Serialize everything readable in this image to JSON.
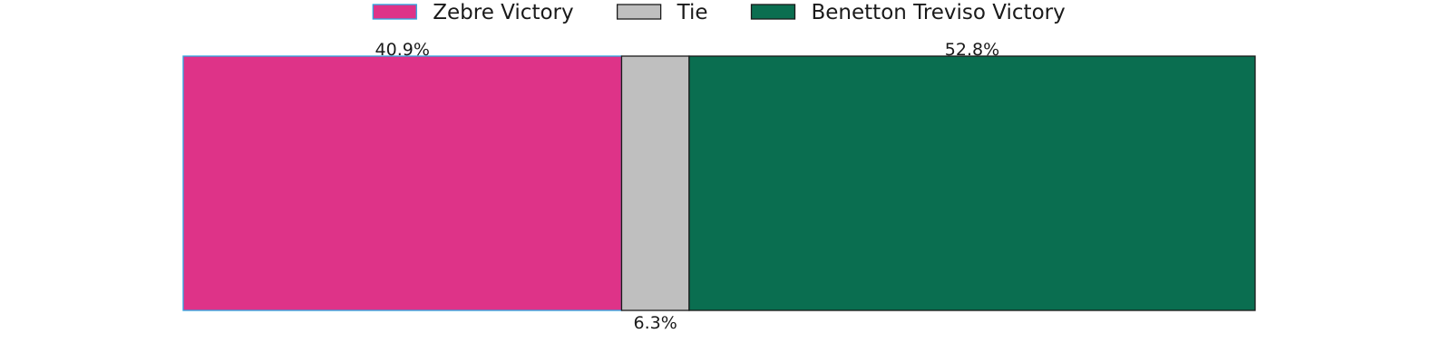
{
  "chart_data": {
    "type": "bar",
    "orientation": "horizontal-stacked-100",
    "title": "",
    "xlabel": "",
    "ylabel": "",
    "xlim": [
      0,
      100
    ],
    "grid": false,
    "legend_position": "top-center",
    "series": [
      {
        "name": "Zebre Victory",
        "values": [
          40.9
        ],
        "label": "40.9%",
        "label_position": "top",
        "color": "#de3388",
        "edge_color": "#2ea6e0"
      },
      {
        "name": "Tie",
        "values": [
          6.3
        ],
        "label": "6.3%",
        "label_position": "bottom",
        "color": "#bfbfbf",
        "edge_color": "#1a1a1a"
      },
      {
        "name": "Benetton Treviso Victory",
        "values": [
          52.8
        ],
        "label": "52.8%",
        "label_position": "top",
        "color": "#0a6e50",
        "edge_color": "#1a1a1a"
      }
    ]
  }
}
